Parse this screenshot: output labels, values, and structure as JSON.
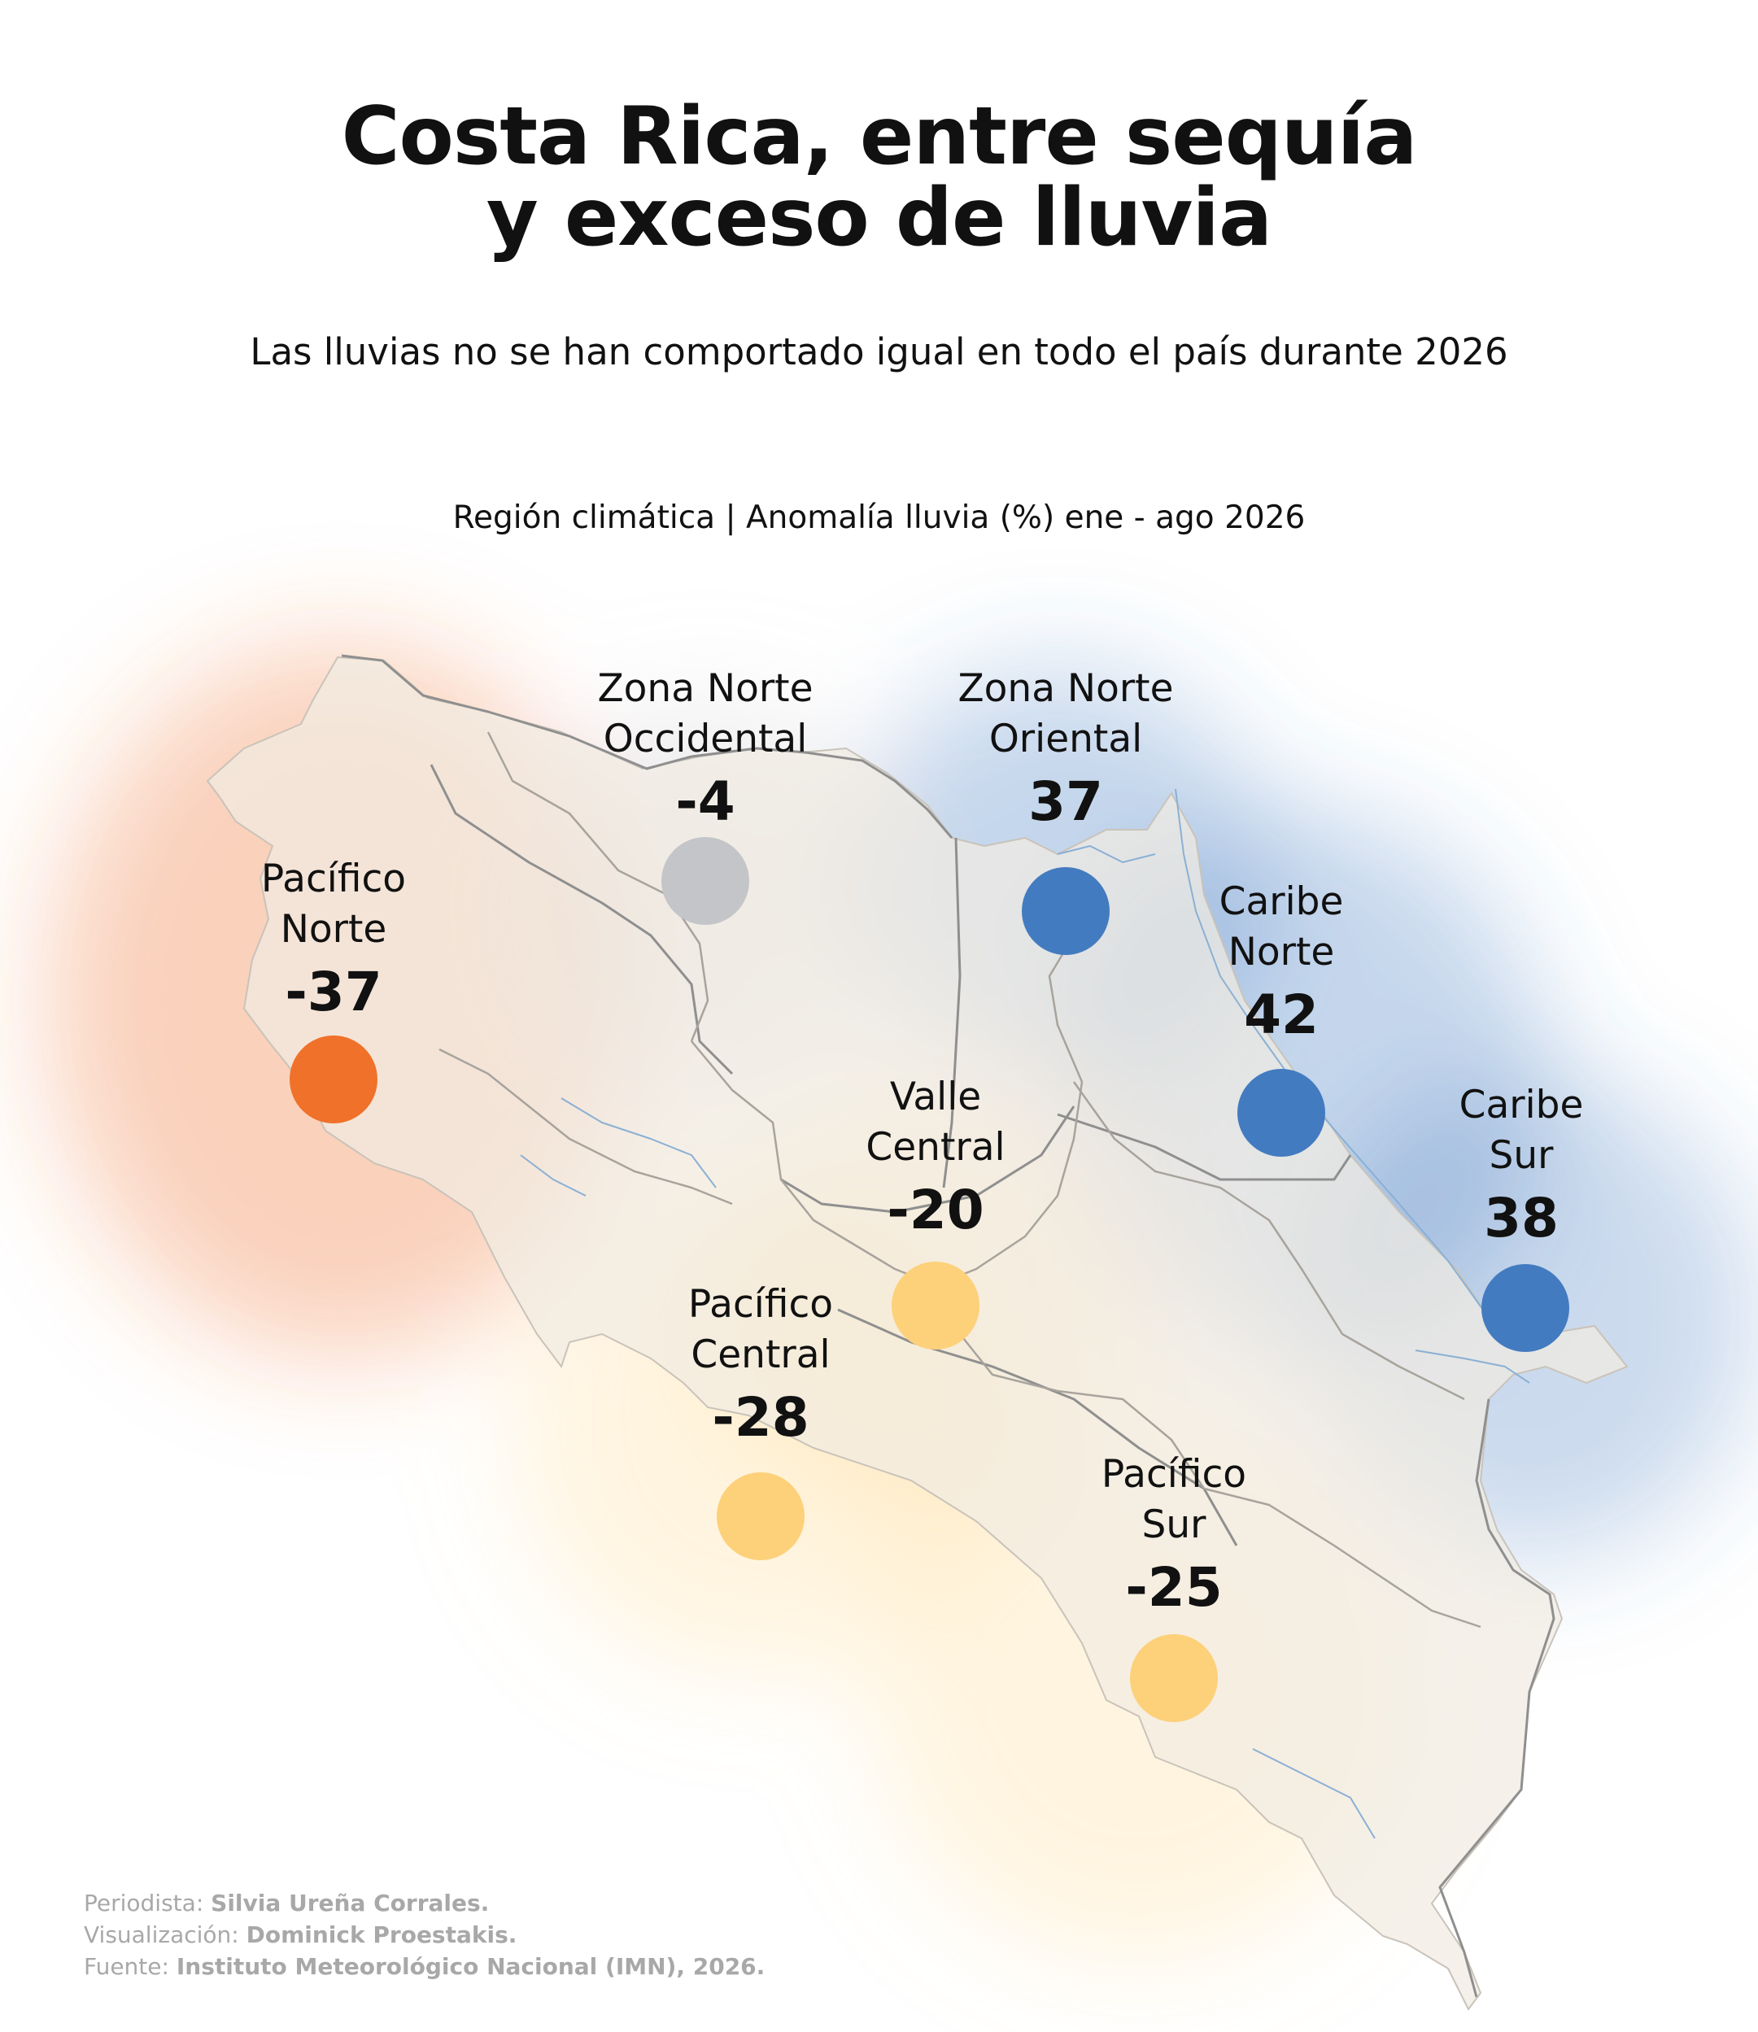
{
  "title": {
    "line1": "Costa Rica, entre sequía",
    "line2": "y exceso de lluvia"
  },
  "subtitle": "Las lluvias no se han comportado igual en todo el país durante 2026",
  "legend_caption": "Región climática | Anomalía lluvia (%) ene - ago 2026",
  "colors": {
    "dry_strong": "#f0712a",
    "dry_moderate": "#fdd07a",
    "near_normal": "#c4c5c8",
    "wet": "#437bc0",
    "land": "#f1ebe2",
    "border": "#8f8f8f",
    "rivers": "#8ab0d4"
  },
  "regions": [
    {
      "name_line1": "Pacífico",
      "name_line2": "Norte",
      "value": "-37",
      "color": "#f0712a"
    },
    {
      "name_line1": "Zona Norte",
      "name_line2": "Occidental",
      "value": "-4",
      "color": "#c4c5c8"
    },
    {
      "name_line1": "Zona Norte",
      "name_line2": "Oriental",
      "value": "37",
      "color": "#437bc0"
    },
    {
      "name_line1": "Caribe",
      "name_line2": "Norte",
      "value": "42",
      "color": "#437bc0"
    },
    {
      "name_line1": "Caribe",
      "name_line2": "Sur",
      "value": "38",
      "color": "#437bc0"
    },
    {
      "name_line1": "Valle",
      "name_line2": "Central",
      "value": "-20",
      "color": "#fdd07a"
    },
    {
      "name_line1": "Pacífico",
      "name_line2": "Central",
      "value": "-28",
      "color": "#fdd07a"
    },
    {
      "name_line1": "Pacífico",
      "name_line2": "Sur",
      "value": "-25",
      "color": "#fdd07a"
    }
  ],
  "credits": {
    "journalist_label": "Periodista:",
    "journalist": "Silvia Ureña Corrales.",
    "viz_label": "Visualización:",
    "viz": "Dominick Proestakis.",
    "source_label": "Fuente:",
    "source": "Instituto Meteorológico Nacional (IMN), 2026."
  }
}
